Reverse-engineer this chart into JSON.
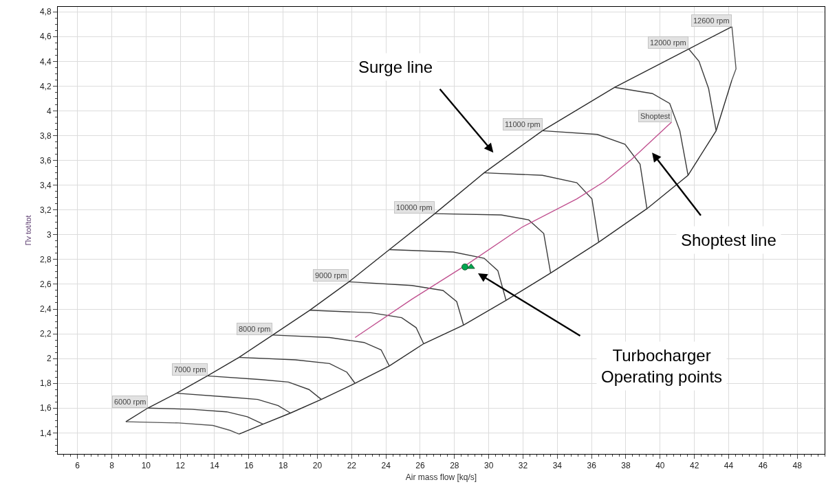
{
  "chart_data": {
    "type": "line",
    "xlabel": "Air mass flow [kq/s]",
    "ylabel": "Πv tot/tot",
    "xlim": [
      4.85,
      49.6
    ],
    "ylim": [
      1.23,
      4.84
    ],
    "xticks": [
      6,
      8,
      10,
      12,
      14,
      16,
      18,
      20,
      22,
      24,
      26,
      28,
      30,
      32,
      34,
      36,
      38,
      40,
      42,
      44,
      46,
      48
    ],
    "yticks": [
      {
        "value": 1.4,
        "label": "1,4"
      },
      {
        "value": 1.6,
        "label": "1,6"
      },
      {
        "value": 1.8,
        "label": "1,8"
      },
      {
        "value": 2,
        "label": "2"
      },
      {
        "value": 2.2,
        "label": "2,2"
      },
      {
        "value": 2.4,
        "label": "2,4"
      },
      {
        "value": 2.6,
        "label": "2,6"
      },
      {
        "value": 2.8,
        "label": "2,8"
      },
      {
        "value": 3,
        "label": "3"
      },
      {
        "value": 3.2,
        "label": "3,2"
      },
      {
        "value": 3.4,
        "label": "3,4"
      },
      {
        "value": 3.6,
        "label": "3,6"
      },
      {
        "value": 3.8,
        "label": "3,8"
      },
      {
        "value": 4,
        "label": "4"
      },
      {
        "value": 4.2,
        "label": "4,2"
      },
      {
        "value": 4.4,
        "label": "4,4"
      },
      {
        "value": 4.6,
        "label": "4,6"
      },
      {
        "value": 4.8,
        "label": "4,8"
      }
    ],
    "grid": true,
    "line_style": "solid",
    "marker": "none",
    "series": [
      {
        "color": "#2a2a2a",
        "x": [
          8.82,
          10.1,
          11.78,
          13.58,
          15.43,
          17.39,
          19.55,
          21.84,
          24.2,
          26.85,
          29.73,
          33.13,
          37.35,
          41.67,
          44.19
        ],
        "values": [
          1.49,
          1.6,
          1.72,
          1.86,
          2.01,
          2.19,
          2.39,
          2.62,
          2.88,
          3.17,
          3.5,
          3.84,
          4.19,
          4.5,
          4.68
        ]
      },
      {
        "color": "#2a2a2a",
        "x": [
          15.43,
          16.83,
          18.43,
          20.23,
          22.2,
          24.2,
          26.2,
          28.53,
          31.01,
          33.61,
          36.42,
          39.23,
          41.63,
          43.27,
          44.19
        ],
        "values": [
          1.39,
          1.47,
          1.56,
          1.67,
          1.8,
          1.94,
          2.12,
          2.27,
          2.47,
          2.69,
          2.94,
          3.21,
          3.48,
          3.84,
          4.25
        ]
      },
      {
        "color": "#555555",
        "x": [
          8.82,
          11.9,
          13.9,
          14.91,
          15.43
        ],
        "values": [
          1.49,
          1.48,
          1.46,
          1.42,
          1.39
        ]
      },
      {
        "color": "#3c3c3c",
        "x": [
          10.1,
          12.7,
          14.71,
          15.91,
          16.83
        ],
        "values": [
          1.6,
          1.59,
          1.57,
          1.53,
          1.47
        ]
      },
      {
        "color": "#3c3c3c",
        "x": [
          11.78,
          14.71,
          16.51,
          17.71,
          18.43
        ],
        "values": [
          1.72,
          1.69,
          1.67,
          1.62,
          1.56
        ]
      },
      {
        "color": "#3c3c3c",
        "x": [
          13.58,
          16.71,
          18.31,
          19.51,
          20.23
        ],
        "values": [
          1.86,
          1.83,
          1.81,
          1.75,
          1.67
        ]
      },
      {
        "color": "#3c3c3c",
        "x": [
          15.43,
          18.71,
          20.71,
          21.72,
          22.2
        ],
        "values": [
          2.01,
          1.99,
          1.96,
          1.89,
          1.8
        ]
      },
      {
        "color": "#3c3c3c",
        "x": [
          17.39,
          20.71,
          22.72,
          23.72,
          24.2
        ],
        "values": [
          2.19,
          2.17,
          2.13,
          2.07,
          1.94
        ]
      },
      {
        "color": "#3c3c3c",
        "x": [
          19.55,
          23.12,
          24.92,
          25.76,
          26.2
        ],
        "values": [
          2.39,
          2.37,
          2.33,
          2.25,
          2.12
        ]
      },
      {
        "color": "#3c3c3c",
        "x": [
          21.84,
          25.52,
          27.33,
          28.13,
          28.53
        ],
        "values": [
          2.62,
          2.59,
          2.55,
          2.46,
          2.27
        ]
      },
      {
        "color": "#3c3c3c",
        "x": [
          24.2,
          27.93,
          29.73,
          30.53,
          31.01
        ],
        "values": [
          2.88,
          2.86,
          2.81,
          2.71,
          2.47
        ]
      },
      {
        "color": "#3c3c3c",
        "x": [
          26.85,
          30.73,
          32.33,
          33.21,
          33.61
        ],
        "values": [
          3.17,
          3.16,
          3.12,
          3.01,
          2.69
        ]
      },
      {
        "color": "#3c3c3c",
        "x": [
          29.73,
          33.13,
          35.14,
          36.02,
          36.42
        ],
        "values": [
          3.5,
          3.48,
          3.42,
          3.29,
          2.94
        ]
      },
      {
        "color": "#3c3c3c",
        "x": [
          33.13,
          36.34,
          37.95,
          38.83,
          39.23
        ],
        "values": [
          3.84,
          3.81,
          3.73,
          3.57,
          3.21
        ]
      },
      {
        "color": "#3c3c3c",
        "x": [
          37.35,
          39.55,
          40.56,
          41.15,
          41.63
        ],
        "values": [
          4.19,
          4.14,
          4.06,
          3.84,
          3.48
        ]
      },
      {
        "color": "#3c3c3c",
        "x": [
          41.67,
          42.27,
          42.83,
          43.27
        ],
        "values": [
          4.5,
          4.4,
          4.18,
          3.84
        ]
      },
      {
        "color": "#555555",
        "x": [
          44.19,
          44.31,
          44.43,
          44.19
        ],
        "values": [
          4.68,
          4.51,
          4.34,
          4.25
        ]
      },
      {
        "color": "#c0508f",
        "x": [
          22.2,
          25.52,
          28.73,
          31.93,
          35.14,
          36.75,
          38.35,
          40.67
        ],
        "values": [
          2.17,
          2.48,
          2.76,
          3.06,
          3.29,
          3.43,
          3.61,
          3.91
        ]
      },
      {
        "type": "scatter",
        "marker": "circle",
        "color": "#00a650",
        "x": [
          28.61
        ],
        "values": [
          2.74
        ]
      },
      {
        "type": "scatter",
        "marker": "triangle",
        "color": "#00a650",
        "x": [
          28.97
        ],
        "values": [
          2.74
        ]
      }
    ],
    "annotations": [
      {
        "text": "6000 rpm",
        "x": 10.1,
        "y": 1.6
      },
      {
        "text": "7000 rpm",
        "x": 13.58,
        "y": 1.86
      },
      {
        "text": "8000 rpm",
        "x": 17.39,
        "y": 2.19
      },
      {
        "text": "9000 rpm",
        "x": 21.84,
        "y": 2.62
      },
      {
        "text": "10000 rpm",
        "x": 26.85,
        "y": 3.17
      },
      {
        "text": "11000 rpm",
        "x": 33.13,
        "y": 3.84
      },
      {
        "text": "12000 rpm",
        "x": 41.67,
        "y": 4.5
      },
      {
        "text": "12600 rpm",
        "x": 44.19,
        "y": 4.68
      },
      {
        "text": "Shoptest",
        "x": 40.67,
        "y": 3.91
      },
      "Surge line",
      "Shoptest line",
      "Turbocharger\nOperating points"
    ]
  }
}
